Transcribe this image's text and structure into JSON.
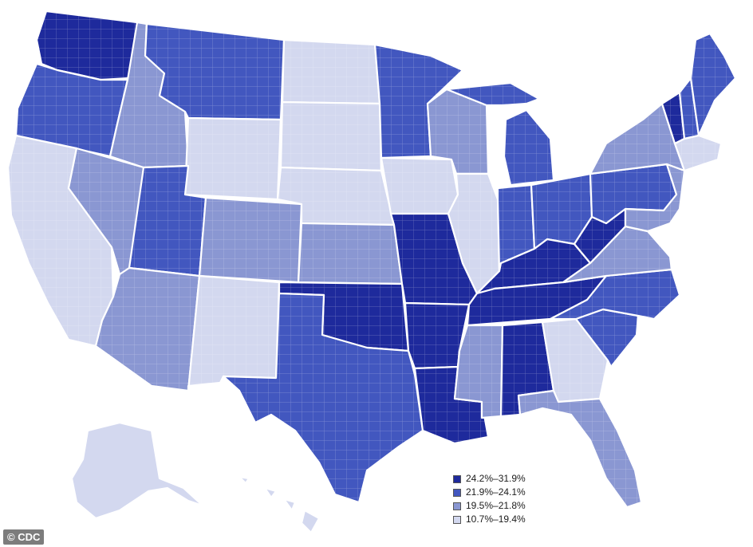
{
  "legend": {
    "items": [
      {
        "label": "24.2%–31.9%",
        "color": "#1e2a9c"
      },
      {
        "label": "21.9%–24.1%",
        "color": "#4257bf"
      },
      {
        "label": "19.5%–21.8%",
        "color": "#8a97d2"
      },
      {
        "label": "10.7%–19.4%",
        "color": "#d3d8ef"
      }
    ]
  },
  "credit": "© CDC"
}
